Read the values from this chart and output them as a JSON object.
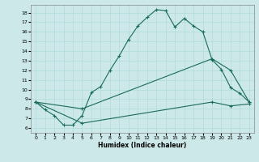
{
  "xlabel": "Humidex (Indice chaleur)",
  "bg_color": "#cce8e8",
  "line_color": "#1a6b5a",
  "xlim": [
    -0.5,
    23.5
  ],
  "ylim": [
    5.5,
    18.8
  ],
  "yticks": [
    6,
    7,
    8,
    9,
    10,
    11,
    12,
    13,
    14,
    15,
    16,
    17,
    18
  ],
  "xticks": [
    0,
    1,
    2,
    3,
    4,
    5,
    6,
    7,
    8,
    9,
    10,
    11,
    12,
    13,
    14,
    15,
    16,
    17,
    18,
    19,
    20,
    21,
    22,
    23
  ],
  "line1_x": [
    0,
    1,
    2,
    3,
    4,
    5,
    6,
    7,
    8,
    9,
    10,
    11,
    12,
    13,
    14,
    15,
    16,
    17,
    18,
    19,
    20,
    21,
    22,
    23
  ],
  "line1_y": [
    8.7,
    7.9,
    7.3,
    6.3,
    6.3,
    7.3,
    9.7,
    10.3,
    12.0,
    13.5,
    15.2,
    16.6,
    17.5,
    18.3,
    18.2,
    16.5,
    17.4,
    16.6,
    16.0,
    13.1,
    12.1,
    10.2,
    9.6,
    8.7
  ],
  "line2_x": [
    0,
    5,
    19,
    21,
    23
  ],
  "line2_y": [
    8.7,
    8.0,
    13.2,
    12.0,
    8.7
  ],
  "line3_x": [
    0,
    5,
    19,
    21,
    23
  ],
  "line3_y": [
    8.7,
    6.5,
    8.7,
    8.3,
    8.5
  ]
}
